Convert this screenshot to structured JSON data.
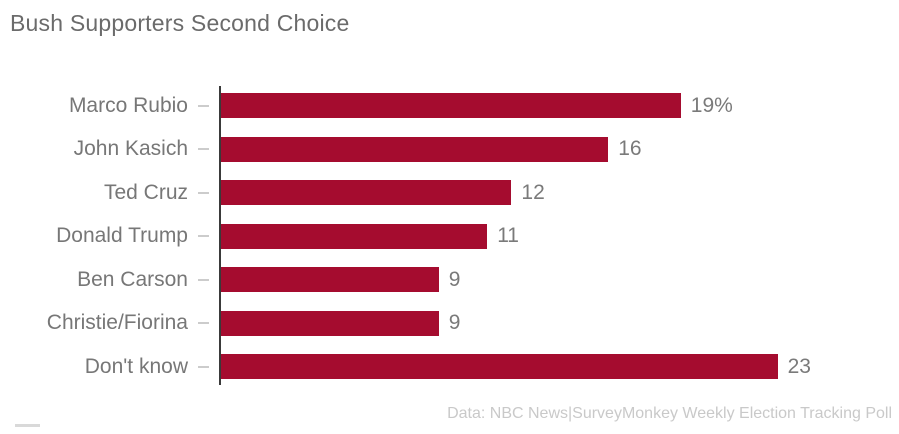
{
  "title": "Bush Supporters Second Choice",
  "footer": "Data: NBC News|SurveyMonkey Weekly Election Tracking Poll",
  "colors": {
    "bar": "#a50c2f",
    "title_text": "#6b6b6b",
    "label_text": "#777777",
    "value_text": "#7a7a7a",
    "footer_text": "#c9c9c9",
    "axis_line": "#3a3a3a",
    "tick": "#cccccc"
  },
  "chart_data": {
    "type": "bar",
    "orientation": "horizontal",
    "title": "Bush Supporters Second Choice",
    "categories": [
      "Marco Rubio",
      "John Kasich",
      "Ted Cruz",
      "Donald Trump",
      "Ben Carson",
      "Christie/Fiorina",
      "Don't know"
    ],
    "values": [
      19,
      16,
      12,
      11,
      9,
      9,
      23
    ],
    "value_labels": [
      "19%",
      "16",
      "12",
      "11",
      "9",
      "9",
      "23"
    ],
    "xlim": [
      0,
      23
    ],
    "grid": false,
    "legend": false,
    "bar_color": "#a50c2f",
    "source_note": "Data: NBC News|SurveyMonkey Weekly Election Tracking Poll"
  }
}
